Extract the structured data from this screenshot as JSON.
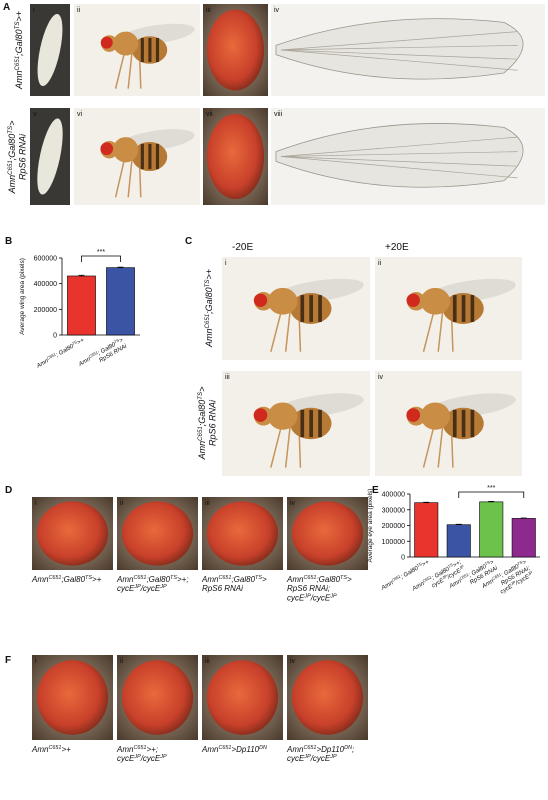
{
  "panels": {
    "A": {
      "label": "A",
      "images": [
        "i",
        "ii",
        "iii",
        "iv",
        "v",
        "vi",
        "vii",
        "viii"
      ],
      "rows": [
        [
          [
            "Amn",
            {
              "sup": "C651"
            },
            ";Gal80",
            {
              "sup": "TS"
            },
            ">+"
          ]
        ],
        [
          [
            "Amn",
            {
              "sup": "C651"
            },
            ";Gal80",
            {
              "sup": "TS"
            },
            ">"
          ],
          [
            "RpS6 RNAi"
          ]
        ]
      ]
    },
    "B": {
      "label": "B"
    },
    "C": {
      "label": "C",
      "columns": [
        "-20E",
        "+20E"
      ],
      "images": [
        "i",
        "ii",
        "iii",
        "iv"
      ],
      "rows": [
        [
          [
            "Amn",
            {
              "sup": "C651"
            },
            ";Gal80",
            {
              "sup": "TS"
            },
            ">+"
          ]
        ],
        [
          [
            "Amn",
            {
              "sup": "C651"
            },
            ";Gal80",
            {
              "sup": "TS"
            },
            ">"
          ],
          [
            "RpS6 RNAi"
          ]
        ]
      ]
    },
    "D": {
      "label": "D",
      "images": [
        "i",
        "ii",
        "iii",
        "iv"
      ],
      "captions": [
        [
          [
            "Amn",
            {
              "sup": "C651"
            },
            ";Gal80",
            {
              "sup": "TS"
            },
            ">+"
          ]
        ],
        [
          [
            "Amn",
            {
              "sup": "C651"
            },
            ";Gal80",
            {
              "sup": "TS"
            },
            ">+;"
          ],
          [
            "cycE",
            {
              "sup": "JP"
            },
            "/cycE",
            {
              "sup": "JP"
            }
          ]
        ],
        [
          [
            "Amn",
            {
              "sup": "C651"
            },
            ";Gal80",
            {
              "sup": "TS"
            },
            ">"
          ],
          [
            "RpS6 RNAi"
          ]
        ],
        [
          [
            "Amn",
            {
              "sup": "C651"
            },
            ";Gal80",
            {
              "sup": "TS"
            },
            ">"
          ],
          [
            "RpS6 RNAi;"
          ],
          [
            "cycE",
            {
              "sup": "JP"
            },
            "/cycE",
            {
              "sup": "JP"
            }
          ]
        ]
      ]
    },
    "E": {
      "label": "E"
    },
    "F": {
      "label": "F",
      "images": [
        "i",
        "ii",
        "iii",
        "iv"
      ],
      "captions": [
        [
          [
            "Amn",
            {
              "sup": "C651"
            },
            ">+"
          ]
        ],
        [
          [
            "Amn",
            {
              "sup": "C651"
            },
            ">+;"
          ],
          [
            "cycE",
            {
              "sup": "JP"
            },
            "/cycE",
            {
              "sup": "JP"
            }
          ]
        ],
        [
          [
            "Amn",
            {
              "sup": "C651"
            },
            ">Dp110",
            {
              "sup": "DN"
            }
          ]
        ],
        [
          [
            "Amn",
            {
              "sup": "C651"
            },
            ">Dp110",
            {
              "sup": "DN"
            },
            ";"
          ],
          [
            "cycE",
            {
              "sup": "JP"
            },
            "/cycE",
            {
              "sup": "JP"
            }
          ]
        ]
      ]
    }
  },
  "chart_data": [
    {
      "type": "bar",
      "y_label": "Average wing area (pixels)",
      "categories": [
        [
          [
            "Amn",
            {
              "sup": "C651"
            },
            "; Gal80",
            {
              "sup": "TS"
            },
            ">+"
          ]
        ],
        [
          [
            "Amn",
            {
              "sup": "C651"
            },
            "; Gal80",
            {
              "sup": "TS"
            },
            ">"
          ],
          [
            "RpS6 RNAi"
          ]
        ]
      ],
      "values": [
        460000,
        525000
      ],
      "errors": [
        6000,
        4000
      ],
      "colors": [
        "#e8342c",
        "#3b54a4"
      ],
      "ylim": [
        0,
        600000
      ],
      "yticks": [
        0,
        200000,
        400000,
        600000
      ],
      "annotations": [
        {
          "text": "***",
          "between": [
            0,
            1
          ]
        }
      ]
    },
    {
      "type": "bar",
      "y_label": "Average eye area (pixels)",
      "categories": [
        [
          [
            "Amn",
            {
              "sup": "C651"
            },
            "; Gal80",
            {
              "sup": "TS"
            },
            ">+"
          ]
        ],
        [
          [
            "Amn",
            {
              "sup": "C651"
            },
            "; Gal80",
            {
              "sup": "TS"
            },
            ">+;"
          ],
          [
            "cycE",
            {
              "sup": "JP"
            },
            "/cycE",
            {
              "sup": "JP"
            }
          ]
        ],
        [
          [
            "Amn",
            {
              "sup": "C651"
            },
            "; Gal80",
            {
              "sup": "TS"
            },
            ">"
          ],
          [
            "RpS6 RNAi"
          ]
        ],
        [
          [
            "Amn",
            {
              "sup": "C651"
            },
            "; Gal80",
            {
              "sup": "TS"
            },
            ">"
          ],
          [
            "RpS6 RNAi;"
          ],
          [
            "cycE",
            {
              "sup": "JP"
            },
            "/cycE",
            {
              "sup": "JP"
            }
          ]
        ]
      ],
      "values": [
        345000,
        205000,
        350000,
        245000
      ],
      "errors": [
        3000,
        3000,
        3000,
        3000
      ],
      "colors": [
        "#e8342c",
        "#3b54a4",
        "#6cc24a",
        "#8e2a8e"
      ],
      "ylim": [
        0,
        400000
      ],
      "yticks": [
        0,
        100000,
        200000,
        300000,
        400000
      ],
      "annotations": [
        {
          "text": "***",
          "between": [
            1,
            3
          ]
        }
      ]
    }
  ]
}
